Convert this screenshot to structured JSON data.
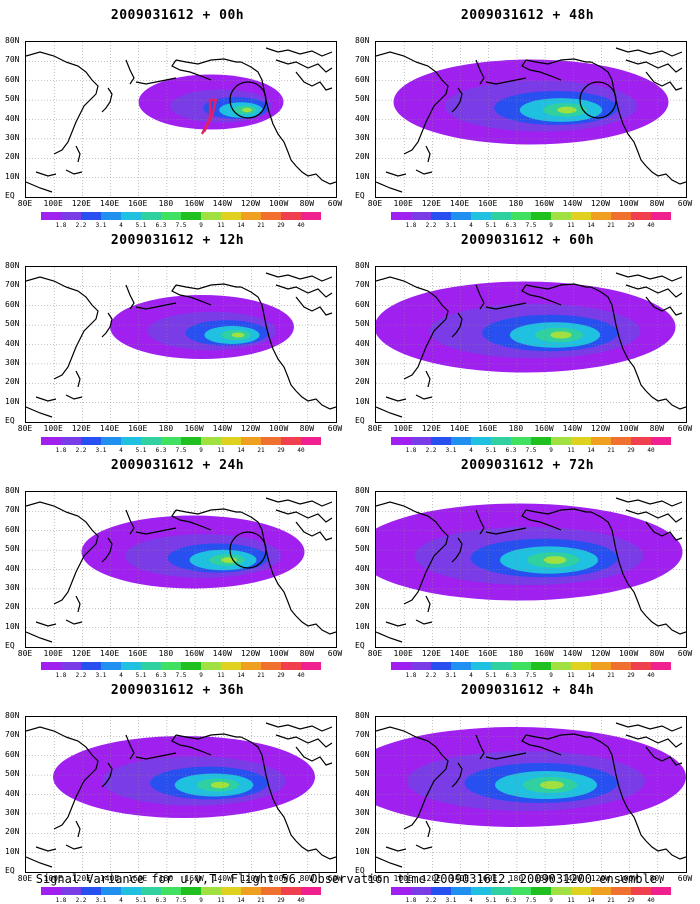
{
  "panels": [
    {
      "title": "2009031612 + 00h",
      "circle": true,
      "flight_track": true
    },
    {
      "title": "2009031612 + 48h",
      "circle": true,
      "flight_track": false
    },
    {
      "title": "2009031612 + 12h",
      "circle": false,
      "flight_track": false
    },
    {
      "title": "2009031612 + 60h",
      "circle": false,
      "flight_track": false
    },
    {
      "title": "2009031612 + 24h",
      "circle": true,
      "flight_track": false
    },
    {
      "title": "2009031612 + 72h",
      "circle": false,
      "flight_track": false
    },
    {
      "title": "2009031612 + 36h",
      "circle": false,
      "flight_track": false
    },
    {
      "title": "2009031612 + 84h",
      "circle": false,
      "flight_track": false
    }
  ],
  "lat_labels": [
    "80N",
    "70N",
    "60N",
    "50N",
    "40N",
    "30N",
    "20N",
    "10N",
    "EQ"
  ],
  "lon_labels": [
    "80E",
    "100E",
    "120E",
    "140E",
    "160E",
    "180",
    "160W",
    "140W",
    "120W",
    "100W",
    "80W",
    "60W"
  ],
  "colorbar": {
    "labels": [
      "1.8",
      "2.2",
      "3.1",
      "4",
      "5.1",
      "6.3",
      "7.5",
      "9",
      "11",
      "14",
      "21",
      "29",
      "40"
    ],
    "colors": [
      "#a020f0",
      "#7a3ce6",
      "#2850f0",
      "#2090f0",
      "#20c0e0",
      "#30d0a0",
      "#40e060",
      "#20c020",
      "#a0e040",
      "#e0d020",
      "#f0a020",
      "#f07030",
      "#f04050",
      "#f02090"
    ]
  },
  "caption": "Signal Variance for u,v,T. Flight 56. Observation time 2009031612. 2009031200 ensemble."
}
